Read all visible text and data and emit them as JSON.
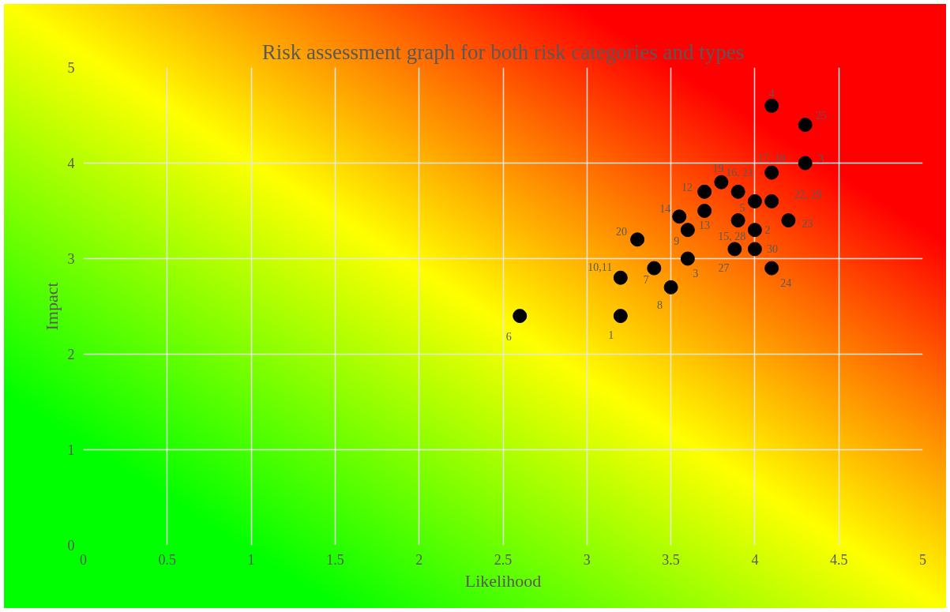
{
  "chart_data": {
    "type": "scatter",
    "title": "Risk assessment graph for both risk categories and types",
    "xlabel": "Likelihood",
    "ylabel": "Impact",
    "x": [
      4.1,
      4.3,
      4.3,
      4.1,
      3.8,
      3.7,
      3.9,
      4.0,
      4.1,
      3.55,
      3.7,
      3.6,
      3.9,
      3.88,
      4.0,
      4.2,
      4.0,
      4.1,
      3.3,
      3.6,
      3.4,
      3.2,
      3.5,
      3.2,
      2.6
    ],
    "values": [
      4.6,
      4.4,
      4.0,
      3.9,
      3.8,
      3.7,
      3.7,
      3.6,
      3.6,
      3.44,
      3.5,
      3.3,
      3.4,
      3.1,
      3.3,
      3.4,
      3.1,
      2.9,
      3.2,
      3.0,
      2.9,
      2.8,
      2.7,
      2.4,
      2.4
    ],
    "annotations": [
      {
        "text": "4",
        "x": 4.1,
        "y": 4.6
      },
      {
        "text": "25",
        "x": 4.3,
        "y": 4.4
      },
      {
        "text": "3",
        "x": 4.3,
        "y": 4.0
      },
      {
        "text": "17, 18",
        "x": 4.1,
        "y": 3.9
      },
      {
        "text": "19",
        "x": 3.8,
        "y": 3.8
      },
      {
        "text": "12",
        "x": 3.7,
        "y": 3.7
      },
      {
        "text": "16, 21",
        "x": 3.9,
        "y": 3.7
      },
      {
        "text": "5",
        "x": 4.0,
        "y": 3.6
      },
      {
        "text": "22, 29",
        "x": 4.1,
        "y": 3.6
      },
      {
        "text": "14",
        "x": 3.55,
        "y": 3.44
      },
      {
        "text": "13",
        "x": 3.7,
        "y": 3.5
      },
      {
        "text": "9",
        "x": 3.6,
        "y": 3.3
      },
      {
        "text": "15, 28",
        "x": 3.9,
        "y": 3.4
      },
      {
        "text": "27",
        "x": 3.88,
        "y": 3.1
      },
      {
        "text": "2",
        "x": 4.0,
        "y": 3.3
      },
      {
        "text": "23",
        "x": 4.2,
        "y": 3.4
      },
      {
        "text": "30",
        "x": 4.0,
        "y": 3.1
      },
      {
        "text": "24",
        "x": 4.1,
        "y": 2.9
      },
      {
        "text": "20",
        "x": 3.3,
        "y": 3.2
      },
      {
        "text": "3",
        "x": 3.6,
        "y": 3.0
      },
      {
        "text": "7",
        "x": 3.4,
        "y": 2.9
      },
      {
        "text": "10,11",
        "x": 3.2,
        "y": 2.8
      },
      {
        "text": "8",
        "x": 3.5,
        "y": 2.7
      },
      {
        "text": "1",
        "x": 3.2,
        "y": 2.4
      },
      {
        "text": "6",
        "x": 2.6,
        "y": 2.4
      }
    ],
    "color": "#000000",
    "marker": "circle",
    "xlim": [
      0,
      5
    ],
    "ylim": [
      0,
      5
    ],
    "xticks": [
      0,
      0.5,
      1,
      1.5,
      2,
      2.5,
      3,
      3.5,
      4,
      4.5,
      5
    ],
    "yticks": [
      0,
      1,
      2,
      3,
      4,
      5
    ],
    "grid": true
  }
}
